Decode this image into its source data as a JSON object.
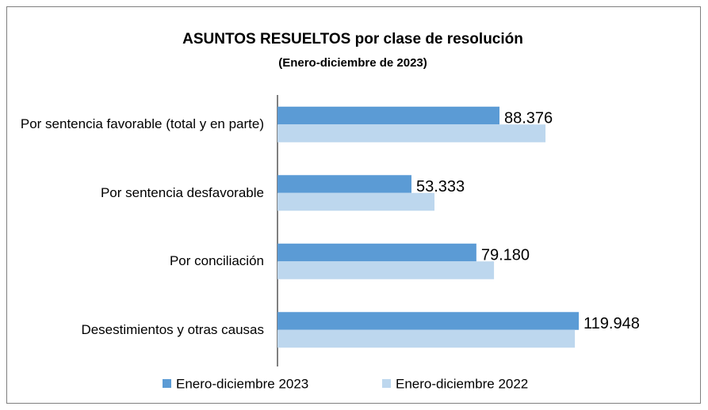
{
  "chart_data": {
    "type": "bar",
    "orientation": "horizontal",
    "title": "ASUNTOS RESUELTOS por clase de resolución",
    "subtitle": "(Enero-diciembre de 2023)",
    "categories": [
      "Por sentencia favorable (total y en parte)",
      "Por sentencia desfavorable",
      "Por conciliación",
      "Desestimientos y otras causas"
    ],
    "series": [
      {
        "name": "Enero-diciembre 2023",
        "color": "#5b9bd5",
        "values": [
          88376,
          53333,
          79180,
          119948
        ],
        "value_labels": [
          "88.376",
          "53.333",
          "79.180",
          "119.948"
        ]
      },
      {
        "name": "Enero-diciembre 2022",
        "color": "#bdd7ee",
        "values": [
          106700,
          62500,
          86200,
          118400
        ]
      }
    ],
    "legend": "bottom"
  }
}
